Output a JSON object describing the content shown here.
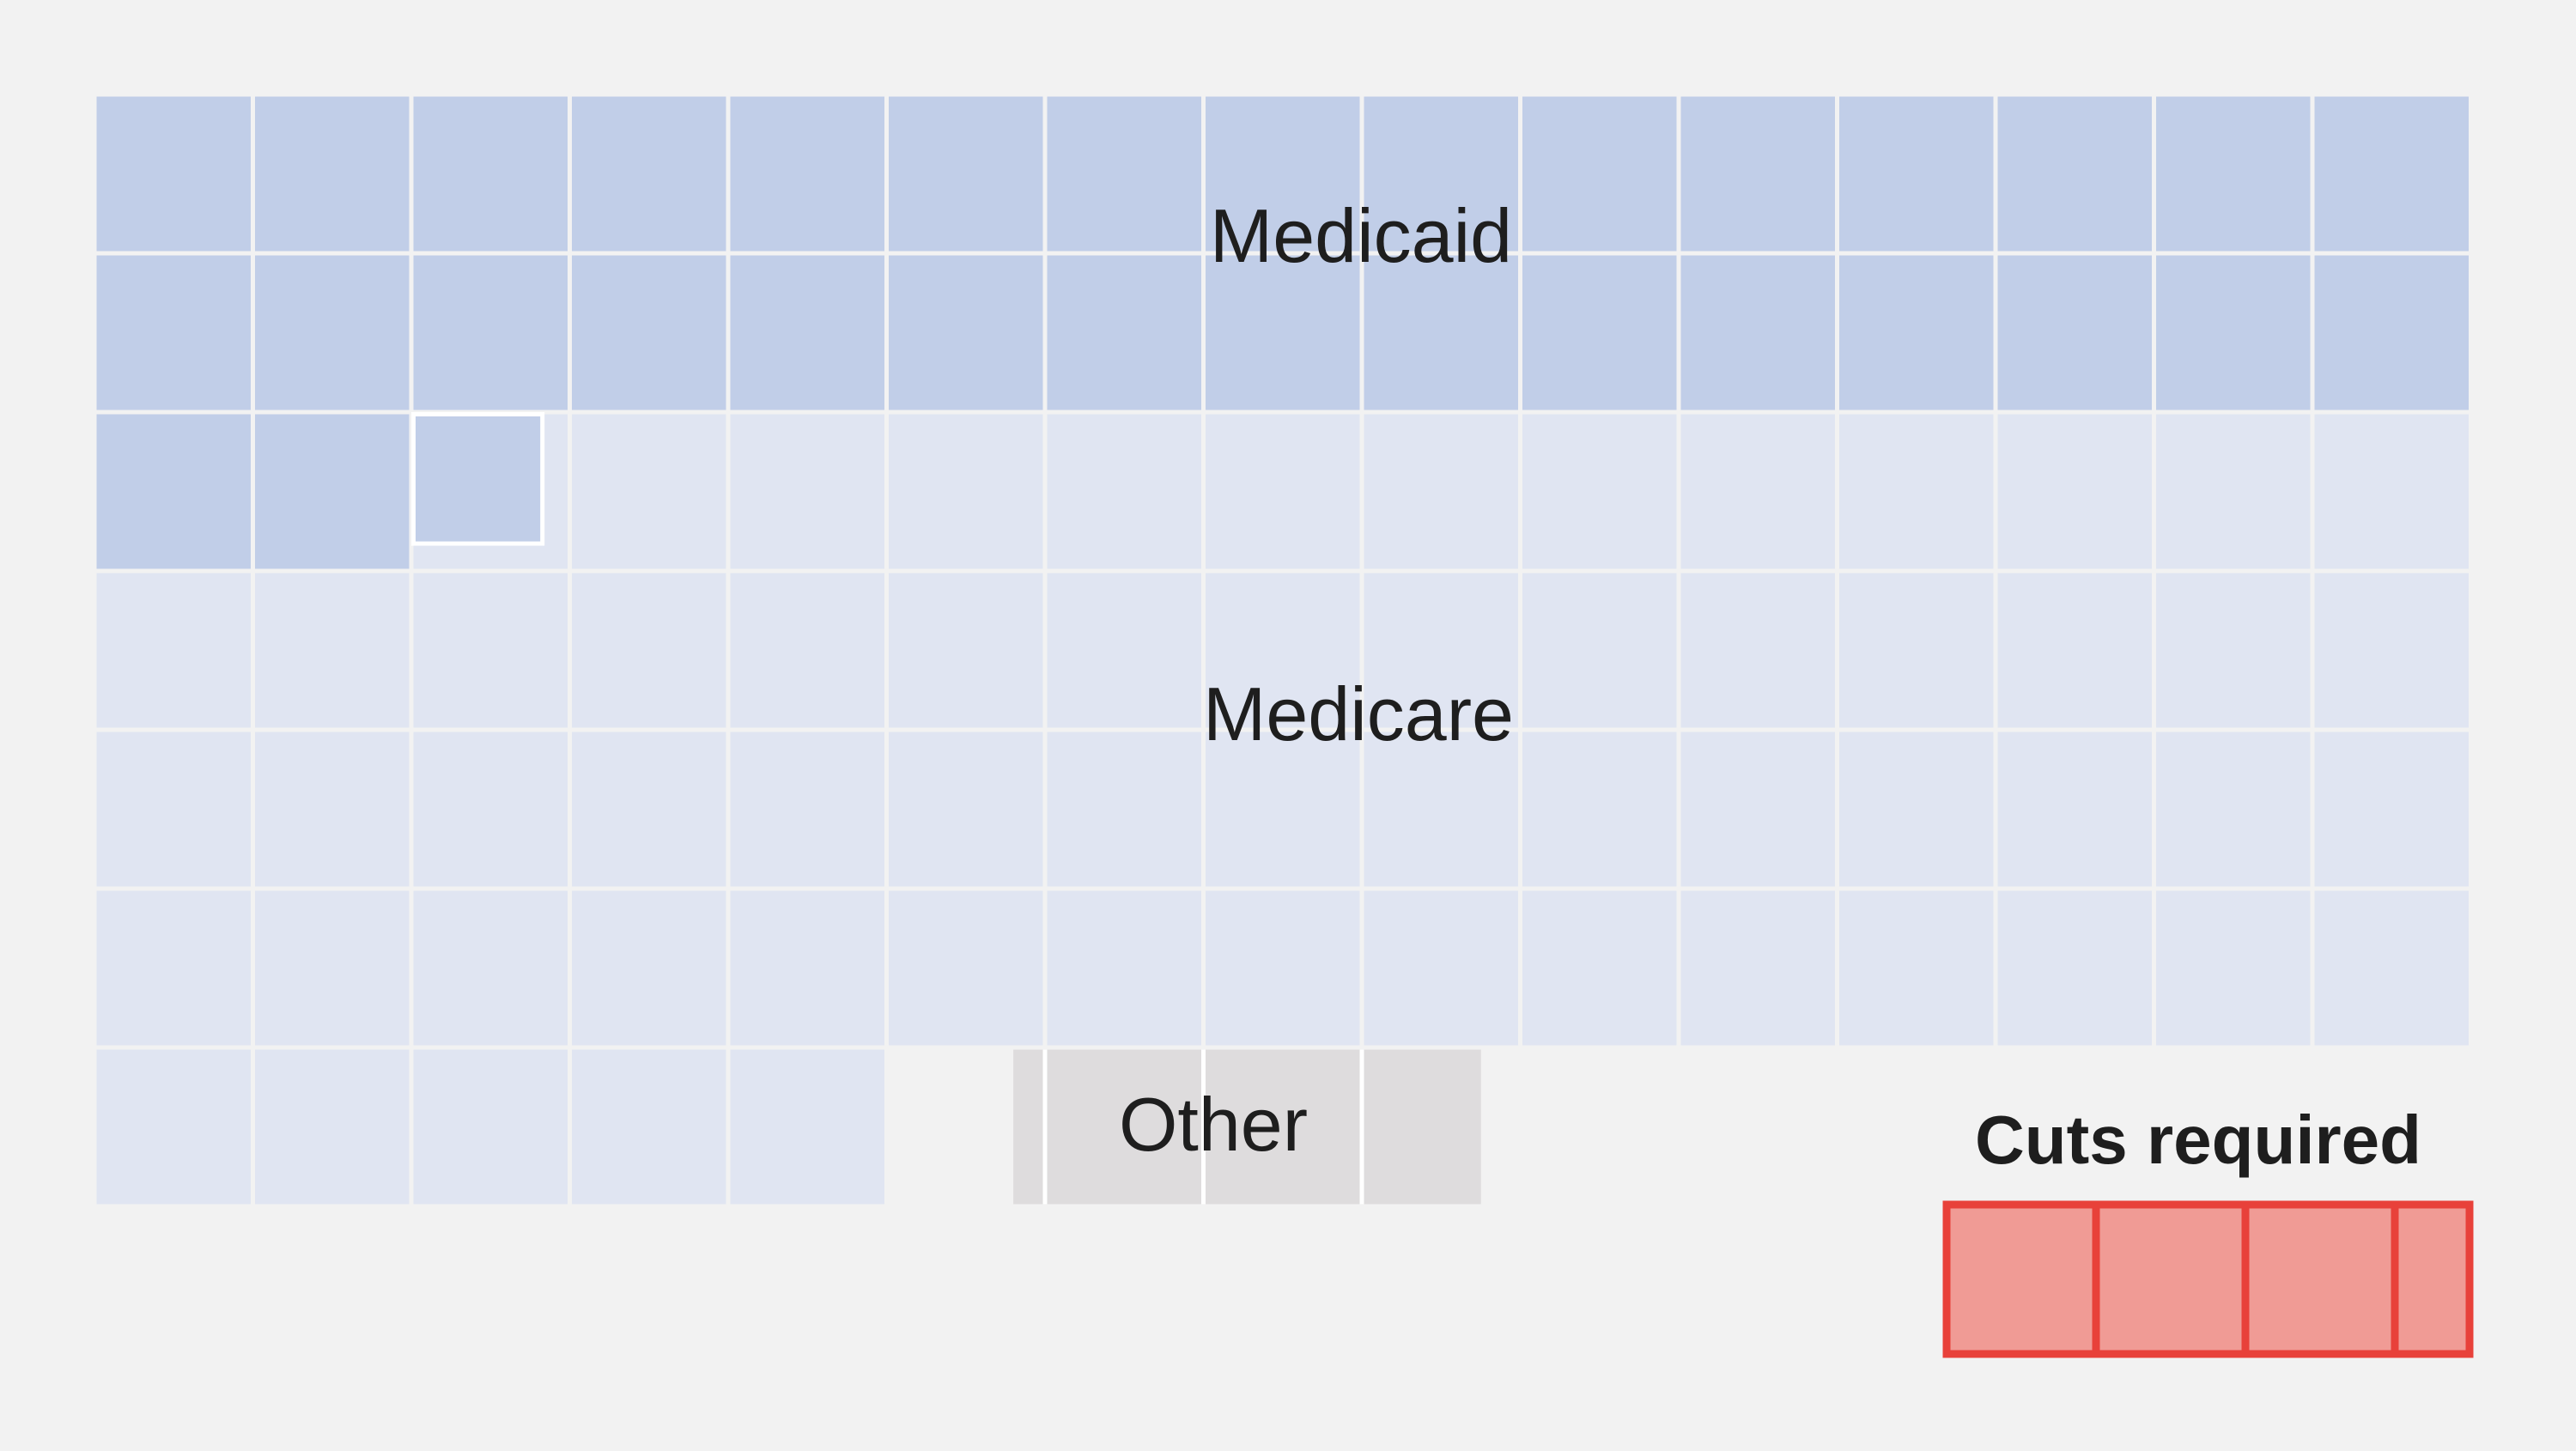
{
  "chart_data": {
    "type": "waffle",
    "grid": {
      "columns": 15,
      "rows": 7
    },
    "segments": [
      {
        "name": "Medicaid",
        "units": 32.7,
        "color": "#c1cee8"
      },
      {
        "name": "Medicare",
        "units": 62.3,
        "color": "#e0e5f2"
      },
      {
        "name": "Other",
        "units": 2.4,
        "color": "#dedcdd"
      }
    ],
    "comparison": {
      "label": "Cuts required",
      "units": 3.5,
      "fill": "#f09b95",
      "stroke": "#e8413a"
    },
    "labels": {
      "medicaid": "Medicaid",
      "medicare": "Medicare",
      "other": "Other",
      "cuts": "Cuts required"
    }
  }
}
